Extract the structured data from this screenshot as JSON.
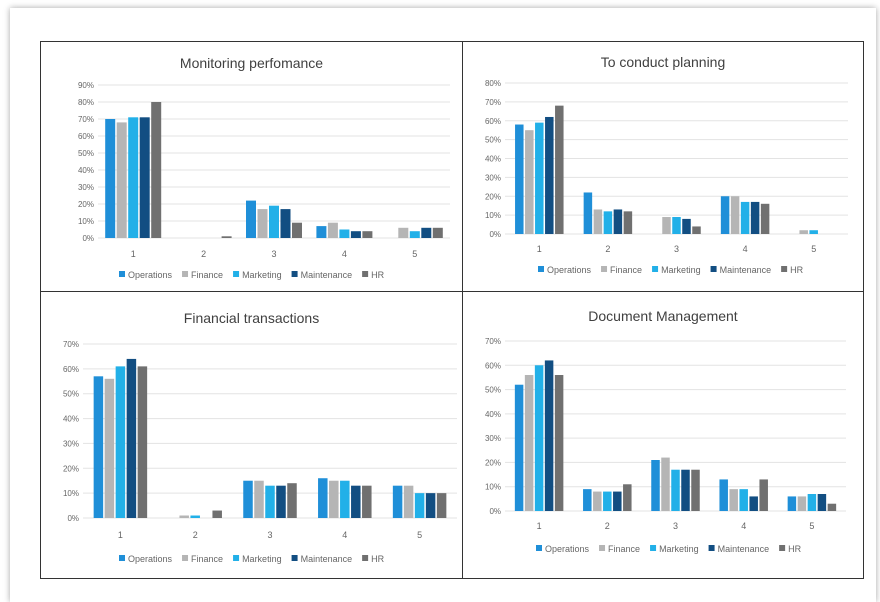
{
  "chart_data": [
    {
      "type": "bar",
      "title": "Monitoring perfomance",
      "categories": [
        "1",
        "2",
        "3",
        "4",
        "5"
      ],
      "ylim": [
        0,
        90
      ],
      "yticks": [
        "0%",
        "10%",
        "20%",
        "30%",
        "40%",
        "50%",
        "60%",
        "70%",
        "80%",
        "90%"
      ],
      "legend_position": "bottom",
      "grid": true,
      "series": [
        {
          "name": "Operations",
          "values": [
            70,
            0,
            22,
            7,
            0
          ]
        },
        {
          "name": "Finance",
          "values": [
            68,
            0,
            17,
            9,
            6
          ]
        },
        {
          "name": "Marketing",
          "values": [
            71,
            0,
            19,
            5,
            4
          ]
        },
        {
          "name": "Maintenance",
          "values": [
            71,
            0,
            17,
            4,
            6
          ]
        },
        {
          "name": "HR",
          "values": [
            80,
            1,
            9,
            4,
            6
          ]
        }
      ]
    },
    {
      "type": "bar",
      "title": "To conduct planning",
      "categories": [
        "1",
        "2",
        "3",
        "4",
        "5"
      ],
      "ylim": [
        0,
        80
      ],
      "yticks": [
        "0%",
        "10%",
        "20%",
        "30%",
        "40%",
        "50%",
        "60%",
        "70%",
        "80%"
      ],
      "legend_position": "bottom",
      "grid": true,
      "series": [
        {
          "name": "Operations",
          "values": [
            58,
            22,
            0,
            20,
            0
          ]
        },
        {
          "name": "Finance",
          "values": [
            55,
            13,
            9,
            20,
            2
          ]
        },
        {
          "name": "Marketing",
          "values": [
            59,
            12,
            9,
            17,
            2
          ]
        },
        {
          "name": "Maintenance",
          "values": [
            62,
            13,
            8,
            17,
            0
          ]
        },
        {
          "name": "HR",
          "values": [
            68,
            12,
            4,
            16,
            0
          ]
        }
      ]
    },
    {
      "type": "bar",
      "title": "Financial transactions",
      "categories": [
        "1",
        "2",
        "3",
        "4",
        "5"
      ],
      "ylim": [
        0,
        70
      ],
      "yticks": [
        "0%",
        "10%",
        "20%",
        "30%",
        "40%",
        "50%",
        "60%",
        "70%"
      ],
      "legend_position": "bottom",
      "grid": true,
      "series": [
        {
          "name": "Operations",
          "values": [
            57,
            0,
            15,
            16,
            13
          ]
        },
        {
          "name": "Finance",
          "values": [
            56,
            1,
            15,
            15,
            13
          ]
        },
        {
          "name": "Marketing",
          "values": [
            61,
            1,
            13,
            15,
            10
          ]
        },
        {
          "name": "Maintenance",
          "values": [
            64,
            0,
            13,
            13,
            10
          ]
        },
        {
          "name": "HR",
          "values": [
            61,
            3,
            14,
            13,
            10
          ]
        }
      ]
    },
    {
      "type": "bar",
      "title": "Document Management",
      "categories": [
        "1",
        "2",
        "3",
        "4",
        "5"
      ],
      "ylim": [
        0,
        70
      ],
      "yticks": [
        "0%",
        "10%",
        "20%",
        "30%",
        "40%",
        "50%",
        "60%",
        "70%"
      ],
      "legend_position": "bottom",
      "grid": true,
      "series": [
        {
          "name": "Operations",
          "values": [
            52,
            9,
            21,
            13,
            6
          ]
        },
        {
          "name": "Finance",
          "values": [
            56,
            8,
            22,
            9,
            6
          ]
        },
        {
          "name": "Marketing",
          "values": [
            60,
            8,
            17,
            9,
            7
          ]
        },
        {
          "name": "Maintenance",
          "values": [
            62,
            8,
            17,
            6,
            7
          ]
        },
        {
          "name": "HR",
          "values": [
            56,
            11,
            17,
            13,
            3
          ]
        }
      ]
    }
  ],
  "colors": {
    "Operations": "#1f8fd8",
    "Finance": "#b5b5b5",
    "Marketing": "#22b0e8",
    "Maintenance": "#124e82",
    "HR": "#707070",
    "grid": "#e3e3e3",
    "axis_text": "#666666",
    "title_text": "#404040"
  }
}
